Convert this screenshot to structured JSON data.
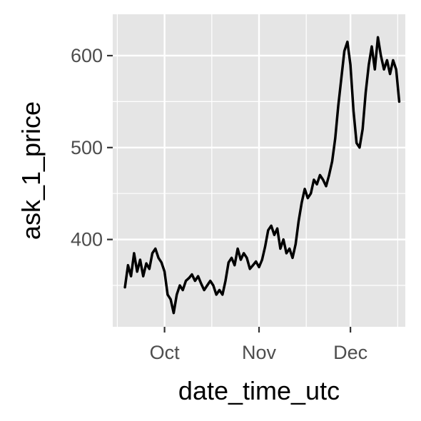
{
  "chart_data": {
    "type": "line",
    "title": "",
    "xlabel": "date_time_utc",
    "ylabel": "ask_1_price",
    "x_type": "date",
    "xlim": [
      "2014-09-14",
      "2014-12-19"
    ],
    "ylim": [
      305,
      645
    ],
    "x_ticks": [
      {
        "value": "2014-10-01",
        "label": "Oct"
      },
      {
        "value": "2014-11-01",
        "label": "Nov"
      },
      {
        "value": "2014-12-01",
        "label": "Dec"
      }
    ],
    "y_ticks": [
      400,
      500,
      600
    ],
    "grid": true,
    "background": "#e5e5e5",
    "grid_major_color": "#ffffff",
    "line_color": "#000000",
    "series": [
      {
        "points": [
          [
            "2014-09-18",
            348
          ],
          [
            "2014-09-19",
            372
          ],
          [
            "2014-09-20",
            360
          ],
          [
            "2014-09-21",
            385
          ],
          [
            "2014-09-22",
            365
          ],
          [
            "2014-09-23",
            378
          ],
          [
            "2014-09-24",
            360
          ],
          [
            "2014-09-25",
            374
          ],
          [
            "2014-09-26",
            368
          ],
          [
            "2014-09-27",
            385
          ],
          [
            "2014-09-28",
            390
          ],
          [
            "2014-09-29",
            380
          ],
          [
            "2014-09-30",
            375
          ],
          [
            "2014-10-01",
            365
          ],
          [
            "2014-10-02",
            340
          ],
          [
            "2014-10-03",
            335
          ],
          [
            "2014-10-04",
            320
          ],
          [
            "2014-10-05",
            340
          ],
          [
            "2014-10-06",
            350
          ],
          [
            "2014-10-07",
            345
          ],
          [
            "2014-10-08",
            355
          ],
          [
            "2014-10-09",
            358
          ],
          [
            "2014-10-10",
            362
          ],
          [
            "2014-10-11",
            355
          ],
          [
            "2014-10-12",
            360
          ],
          [
            "2014-10-13",
            352
          ],
          [
            "2014-10-14",
            345
          ],
          [
            "2014-10-15",
            350
          ],
          [
            "2014-10-16",
            355
          ],
          [
            "2014-10-17",
            350
          ],
          [
            "2014-10-18",
            340
          ],
          [
            "2014-10-19",
            345
          ],
          [
            "2014-10-20",
            340
          ],
          [
            "2014-10-21",
            355
          ],
          [
            "2014-10-22",
            375
          ],
          [
            "2014-10-23",
            380
          ],
          [
            "2014-10-24",
            372
          ],
          [
            "2014-10-25",
            390
          ],
          [
            "2014-10-26",
            378
          ],
          [
            "2014-10-27",
            385
          ],
          [
            "2014-10-28",
            380
          ],
          [
            "2014-10-29",
            368
          ],
          [
            "2014-10-30",
            372
          ],
          [
            "2014-10-31",
            376
          ],
          [
            "2014-11-01",
            370
          ],
          [
            "2014-11-02",
            378
          ],
          [
            "2014-11-03",
            392
          ],
          [
            "2014-11-04",
            410
          ],
          [
            "2014-11-05",
            415
          ],
          [
            "2014-11-06",
            405
          ],
          [
            "2014-11-07",
            412
          ],
          [
            "2014-11-08",
            390
          ],
          [
            "2014-11-09",
            400
          ],
          [
            "2014-11-10",
            385
          ],
          [
            "2014-11-11",
            390
          ],
          [
            "2014-11-12",
            380
          ],
          [
            "2014-11-13",
            395
          ],
          [
            "2014-11-14",
            420
          ],
          [
            "2014-11-15",
            440
          ],
          [
            "2014-11-16",
            455
          ],
          [
            "2014-11-17",
            445
          ],
          [
            "2014-11-18",
            450
          ],
          [
            "2014-11-19",
            465
          ],
          [
            "2014-11-20",
            460
          ],
          [
            "2014-11-21",
            470
          ],
          [
            "2014-11-22",
            465
          ],
          [
            "2014-11-23",
            458
          ],
          [
            "2014-11-24",
            470
          ],
          [
            "2014-11-25",
            485
          ],
          [
            "2014-11-26",
            510
          ],
          [
            "2014-11-27",
            545
          ],
          [
            "2014-11-28",
            575
          ],
          [
            "2014-11-29",
            605
          ],
          [
            "2014-11-30",
            615
          ],
          [
            "2014-12-01",
            590
          ],
          [
            "2014-12-02",
            540
          ],
          [
            "2014-12-03",
            505
          ],
          [
            "2014-12-04",
            500
          ],
          [
            "2014-12-05",
            520
          ],
          [
            "2014-12-06",
            560
          ],
          [
            "2014-12-07",
            590
          ],
          [
            "2014-12-08",
            610
          ],
          [
            "2014-12-09",
            585
          ],
          [
            "2014-12-10",
            620
          ],
          [
            "2014-12-11",
            600
          ],
          [
            "2014-12-12",
            585
          ],
          [
            "2014-12-13",
            595
          ],
          [
            "2014-12-14",
            580
          ],
          [
            "2014-12-15",
            595
          ],
          [
            "2014-12-16",
            585
          ],
          [
            "2014-12-17",
            550
          ]
        ]
      }
    ]
  }
}
